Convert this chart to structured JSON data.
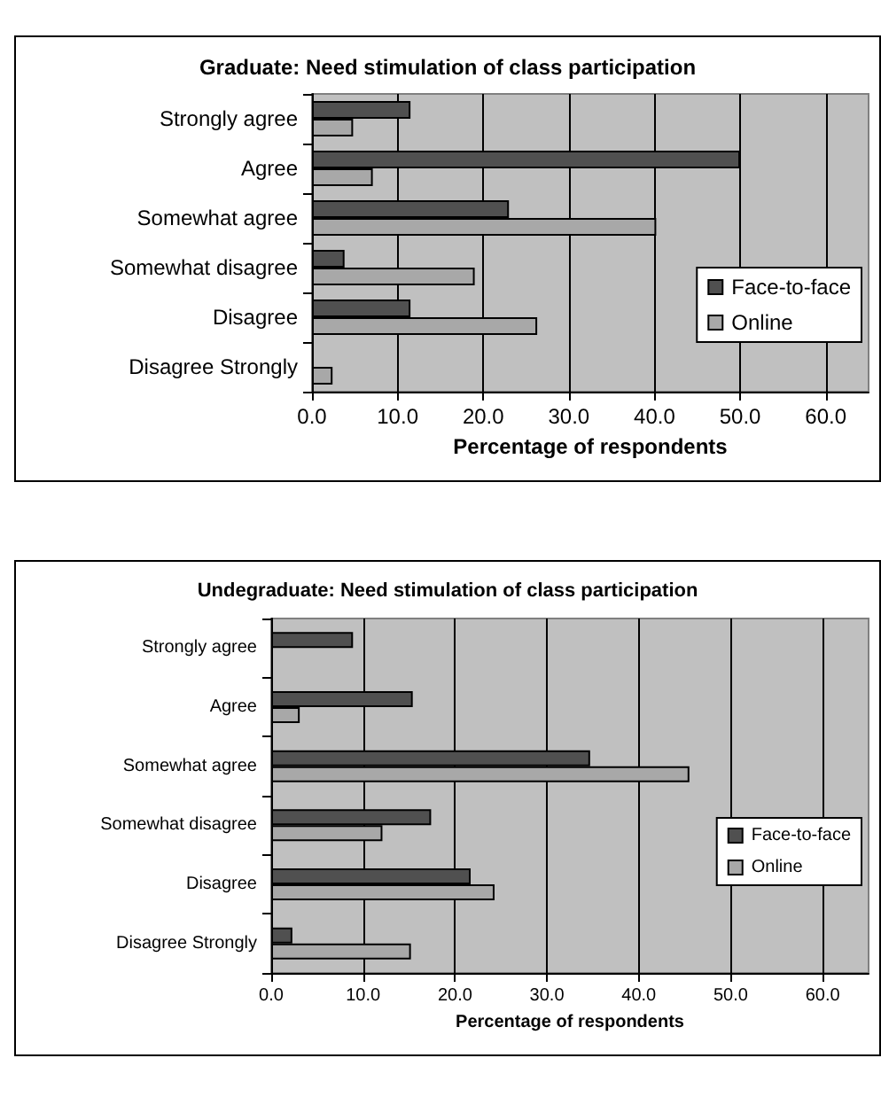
{
  "chart_data": [
    {
      "type": "bar",
      "orientation": "horizontal",
      "title": "Graduate: Need stimulation of class participation",
      "xlabel": "Percentage of respondents",
      "categories": [
        "Strongly agree",
        "Agree",
        "Somewhat agree",
        "Somewhat disagree",
        "Disagree",
        "Disagree Strongly"
      ],
      "series": [
        {
          "name": "Face-to-face",
          "color": "#505050",
          "values": [
            11.5,
            50.0,
            23.0,
            3.8,
            11.5,
            0
          ]
        },
        {
          "name": "Online",
          "color": "#a8a8a8",
          "values": [
            4.8,
            7.1,
            40.2,
            19.0,
            26.3,
            2.4
          ]
        }
      ],
      "xlim": [
        0,
        65
      ],
      "xticks": [
        {
          "value": 0,
          "label": "0.0"
        },
        {
          "value": 10,
          "label": "10.0"
        },
        {
          "value": 20,
          "label": "20.0"
        },
        {
          "value": 30,
          "label": "30.0"
        },
        {
          "value": 40,
          "label": "40.0"
        },
        {
          "value": 50,
          "label": "50.0"
        },
        {
          "value": 60,
          "label": "60.0"
        }
      ],
      "grid": "x",
      "legend": "right"
    },
    {
      "type": "bar",
      "orientation": "horizontal",
      "title": "Undegraduate: Need stimulation of class participation",
      "xlabel": "Percentage of respondents",
      "categories": [
        "Strongly agree",
        "Agree",
        "Somewhat agree",
        "Somewhat disagree",
        "Disagree",
        "Disagree Strongly"
      ],
      "series": [
        {
          "name": "Face-to-face",
          "color": "#505050",
          "values": [
            8.9,
            15.4,
            34.7,
            17.4,
            21.7,
            2.3
          ]
        },
        {
          "name": "Online",
          "color": "#a8a8a8",
          "values": [
            0,
            3.1,
            45.5,
            12.1,
            24.3,
            15.2
          ]
        }
      ],
      "xlim": [
        0,
        65
      ],
      "xticks": [
        {
          "value": 0,
          "label": "0.0"
        },
        {
          "value": 10,
          "label": "10.0"
        },
        {
          "value": 20,
          "label": "20.0"
        },
        {
          "value": 30,
          "label": "30.0"
        },
        {
          "value": 40,
          "label": "40.0"
        },
        {
          "value": 50,
          "label": "50.0"
        },
        {
          "value": 60,
          "label": "60.0"
        }
      ],
      "grid": "x",
      "legend": "right"
    }
  ]
}
